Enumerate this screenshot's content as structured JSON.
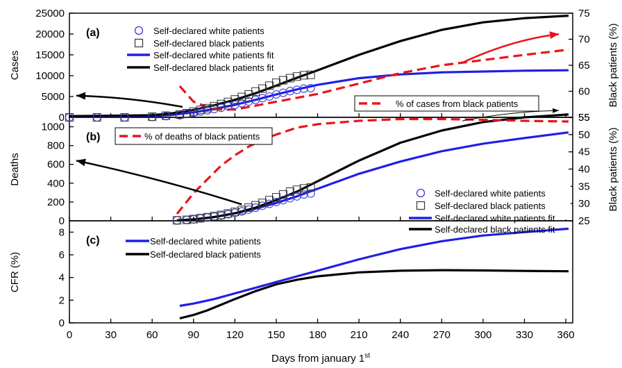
{
  "colors": {
    "white": "#1f1fe6",
    "black": "#000000",
    "pct": "#e8151b",
    "open_circle": "#3a3ad6",
    "open_square": "#333333"
  },
  "chart_data": [
    {
      "panel": "(a)",
      "type": "line",
      "ylabel": "Cases",
      "y2label": "Black patients (%)",
      "xlim": [
        0,
        365
      ],
      "ylim": [
        0,
        25000
      ],
      "y2lim": [
        55,
        75
      ],
      "yticks": [
        0,
        5000,
        10000,
        15000,
        20000,
        25000
      ],
      "y2ticks": [
        55,
        60,
        65,
        70,
        75
      ],
      "legend": [
        "Self-declared white patients",
        "Self-declared black patients",
        "Self-declared white patients fit",
        "Self-declared black patients fit"
      ],
      "legend2": "% of cases from black patients",
      "series": [
        {
          "name": "Self-declared white patients fit",
          "axis": "left",
          "style": "line",
          "color": "white",
          "x": [
            0,
            60,
            75,
            90,
            105,
            120,
            135,
            150,
            165,
            180,
            210,
            240,
            270,
            300,
            330,
            362
          ],
          "y": [
            200,
            300,
            600,
            1200,
            2000,
            3000,
            4200,
            5500,
            6700,
            7800,
            9400,
            10300,
            10800,
            11000,
            11200,
            11300
          ]
        },
        {
          "name": "Self-declared black patients fit",
          "axis": "left",
          "style": "line",
          "color": "black",
          "x": [
            0,
            60,
            75,
            90,
            105,
            120,
            135,
            150,
            165,
            180,
            210,
            240,
            270,
            300,
            330,
            362
          ],
          "y": [
            300,
            500,
            1000,
            1800,
            2900,
            4200,
            5800,
            7600,
            9500,
            11300,
            15000,
            18300,
            21000,
            22800,
            23800,
            24400
          ]
        },
        {
          "name": "Self-declared white patients",
          "axis": "left",
          "style": "circle",
          "color": "open_circle",
          "x": [
            0,
            20,
            40,
            60,
            70,
            80,
            85,
            90,
            95,
            100,
            105,
            110,
            115,
            120,
            125,
            130,
            135,
            140,
            145,
            150,
            155,
            160,
            165,
            170,
            175
          ],
          "y": [
            0,
            0,
            0,
            100,
            300,
            500,
            800,
            1100,
            1400,
            1700,
            2000,
            2300,
            2700,
            3000,
            3400,
            3800,
            4200,
            4600,
            5000,
            5500,
            5900,
            6300,
            6600,
            6900,
            7000
          ]
        },
        {
          "name": "Self-declared black patients",
          "axis": "left",
          "style": "square",
          "color": "open_square",
          "x": [
            0,
            20,
            40,
            60,
            70,
            80,
            85,
            90,
            95,
            100,
            105,
            110,
            115,
            120,
            125,
            130,
            135,
            140,
            145,
            150,
            155,
            160,
            165,
            170,
            175
          ],
          "y": [
            0,
            0,
            0,
            150,
            400,
            700,
            1000,
            1400,
            1800,
            2200,
            2700,
            3200,
            3700,
            4300,
            4900,
            5500,
            6200,
            6900,
            7600,
            8300,
            8900,
            9400,
            9800,
            10100,
            10200
          ]
        },
        {
          "name": "% of cases from black patients",
          "axis": "right",
          "style": "dashed",
          "color": "pct",
          "x": [
            80,
            90,
            100,
            110,
            120,
            130,
            150,
            180,
            210,
            240,
            270,
            300,
            330,
            362
          ],
          "y": [
            61,
            58,
            57,
            56.5,
            56.5,
            57,
            58,
            59.5,
            61.5,
            63.5,
            65,
            66,
            67,
            68
          ]
        }
      ],
      "annotations": [
        {
          "type": "arrow",
          "color": "black",
          "from": [
            82,
            2500
          ],
          "to": [
            5,
            5200
          ]
        },
        {
          "type": "arrow",
          "color": "pct",
          "from": [
            285,
            65.5
          ],
          "to": [
            355,
            71
          ]
        }
      ]
    },
    {
      "panel": "(b)",
      "type": "line",
      "ylabel": "Deaths",
      "y2label": "Black patients (%)",
      "xlim": [
        0,
        365
      ],
      "ylim": [
        0,
        1100
      ],
      "y2lim": [
        25,
        55
      ],
      "yticks": [
        0,
        200,
        400,
        600,
        800,
        1000
      ],
      "y2ticks": [
        25,
        30,
        35,
        40,
        45,
        50,
        55
      ],
      "legend": [
        "Self-declared white patients",
        "Self-declared black patients",
        "Self-declared white patients fit",
        "Self-declared black patients fit"
      ],
      "legend2": "% of deaths of black patients",
      "series": [
        {
          "name": "Self-declared white patients fit",
          "axis": "left",
          "style": "line",
          "color": "white",
          "x": [
            78,
            90,
            105,
            120,
            135,
            150,
            165,
            180,
            210,
            240,
            270,
            300,
            330,
            362
          ],
          "y": [
            5,
            15,
            40,
            80,
            130,
            190,
            260,
            340,
            500,
            630,
            740,
            820,
            880,
            940
          ]
        },
        {
          "name": "Self-declared black patients fit",
          "axis": "left",
          "style": "line",
          "color": "black",
          "x": [
            78,
            90,
            105,
            120,
            135,
            150,
            165,
            180,
            210,
            240,
            270,
            300,
            330,
            362
          ],
          "y": [
            5,
            15,
            40,
            80,
            140,
            220,
            310,
            420,
            640,
            830,
            960,
            1050,
            1100,
            1130
          ]
        },
        {
          "name": "Self-declared white patients",
          "axis": "left",
          "style": "circle",
          "color": "open_circle",
          "x": [
            78,
            85,
            90,
            95,
            100,
            105,
            110,
            115,
            120,
            125,
            130,
            135,
            140,
            145,
            150,
            155,
            160,
            165,
            170,
            175
          ],
          "y": [
            5,
            10,
            15,
            25,
            35,
            45,
            55,
            70,
            85,
            100,
            120,
            140,
            160,
            180,
            200,
            220,
            240,
            260,
            280,
            290
          ]
        },
        {
          "name": "Self-declared black patients",
          "axis": "left",
          "style": "square",
          "color": "open_square",
          "x": [
            78,
            85,
            90,
            95,
            100,
            105,
            110,
            115,
            120,
            125,
            130,
            135,
            140,
            145,
            150,
            155,
            160,
            165,
            170,
            175
          ],
          "y": [
            5,
            10,
            18,
            28,
            38,
            50,
            62,
            78,
            95,
            115,
            140,
            165,
            190,
            220,
            250,
            280,
            310,
            330,
            345,
            355
          ]
        },
        {
          "name": "% of deaths of black patients",
          "axis": "right",
          "style": "dashed",
          "color": "pct",
          "x": [
            78,
            90,
            100,
            110,
            120,
            130,
            140,
            150,
            165,
            180,
            210,
            240,
            270,
            300,
            330,
            362
          ],
          "y": [
            27,
            33,
            37,
            41,
            44,
            46.5,
            48.5,
            50,
            52,
            53,
            54,
            54.5,
            54.5,
            54.3,
            54,
            53.8
          ]
        }
      ],
      "annotations": [
        {
          "type": "arrow",
          "color": "black",
          "from": [
            125,
            175
          ],
          "to": [
            5,
            640
          ]
        },
        {
          "type": "arrow",
          "color": "black",
          "thin": true,
          "from": [
            285,
            54
          ],
          "to": [
            355,
            57
          ]
        }
      ]
    },
    {
      "panel": "(c)",
      "type": "line",
      "ylabel": "CFR (%)",
      "xlabel": "Days from january 1",
      "xlabel_sup": "st",
      "xlim": [
        0,
        365
      ],
      "ylim": [
        0,
        9
      ],
      "yticks": [
        0,
        2,
        4,
        6,
        8
      ],
      "xticks": [
        0,
        30,
        60,
        90,
        120,
        150,
        180,
        210,
        240,
        270,
        300,
        330,
        360
      ],
      "legend": [
        "Self-declared white patients",
        "Self-declared black patients"
      ],
      "series": [
        {
          "name": "Self-declared white patients",
          "style": "line",
          "color": "white",
          "x": [
            80,
            90,
            105,
            120,
            135,
            150,
            165,
            180,
            210,
            240,
            270,
            300,
            330,
            362
          ],
          "y": [
            1.5,
            1.7,
            2.1,
            2.6,
            3.1,
            3.6,
            4.1,
            4.6,
            5.6,
            6.5,
            7.2,
            7.7,
            8.0,
            8.3
          ]
        },
        {
          "name": "Self-declared black patients",
          "style": "line",
          "color": "black",
          "x": [
            80,
            90,
            100,
            110,
            120,
            135,
            150,
            165,
            180,
            210,
            240,
            270,
            300,
            330,
            362
          ],
          "y": [
            0.4,
            0.7,
            1.1,
            1.6,
            2.1,
            2.8,
            3.4,
            3.8,
            4.1,
            4.45,
            4.6,
            4.65,
            4.62,
            4.58,
            4.55
          ]
        }
      ]
    }
  ]
}
